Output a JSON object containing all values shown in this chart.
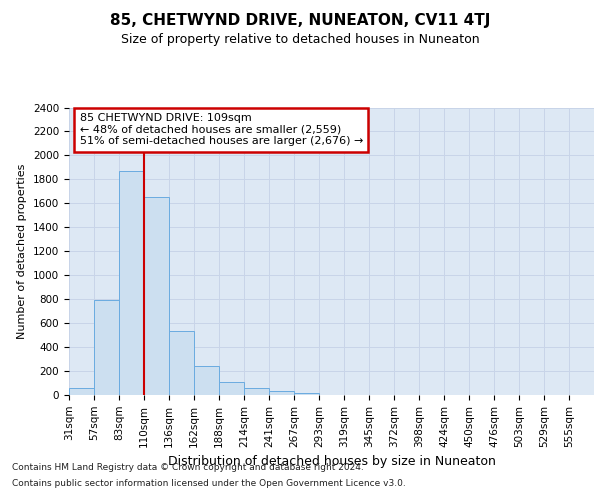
{
  "title": "85, CHETWYND DRIVE, NUNEATON, CV11 4TJ",
  "subtitle": "Size of property relative to detached houses in Nuneaton",
  "xlabel": "Distribution of detached houses by size in Nuneaton",
  "ylabel": "Number of detached properties",
  "bar_labels": [
    "31sqm",
    "57sqm",
    "83sqm",
    "110sqm",
    "136sqm",
    "162sqm",
    "188sqm",
    "214sqm",
    "241sqm",
    "267sqm",
    "293sqm",
    "319sqm",
    "345sqm",
    "372sqm",
    "398sqm",
    "424sqm",
    "450sqm",
    "476sqm",
    "503sqm",
    "529sqm",
    "555sqm"
  ],
  "bar_values": [
    60,
    790,
    1870,
    1650,
    535,
    240,
    110,
    60,
    35,
    20,
    0,
    0,
    0,
    0,
    0,
    0,
    0,
    0,
    0,
    0,
    0
  ],
  "bar_color": "#ccdff0",
  "bar_edgecolor": "#6aabe0",
  "property_line_x": 3,
  "property_line_color": "#cc0000",
  "ylim": [
    0,
    2400
  ],
  "yticks": [
    0,
    200,
    400,
    600,
    800,
    1000,
    1200,
    1400,
    1600,
    1800,
    2000,
    2200,
    2400
  ],
  "grid_color": "#c8d4e8",
  "bg_color": "#dde8f4",
  "annotation_line1": "85 CHETWYND DRIVE: 109sqm",
  "annotation_line2": "← 48% of detached houses are smaller (2,559)",
  "annotation_line3": "51% of semi-detached houses are larger (2,676) →",
  "annotation_box_color": "#cc0000",
  "footer_line1": "Contains HM Land Registry data © Crown copyright and database right 2024.",
  "footer_line2": "Contains public sector information licensed under the Open Government Licence v3.0.",
  "title_fontsize": 11,
  "subtitle_fontsize": 9,
  "ylabel_fontsize": 8,
  "xlabel_fontsize": 9,
  "tick_fontsize": 7.5,
  "footer_fontsize": 6.5
}
